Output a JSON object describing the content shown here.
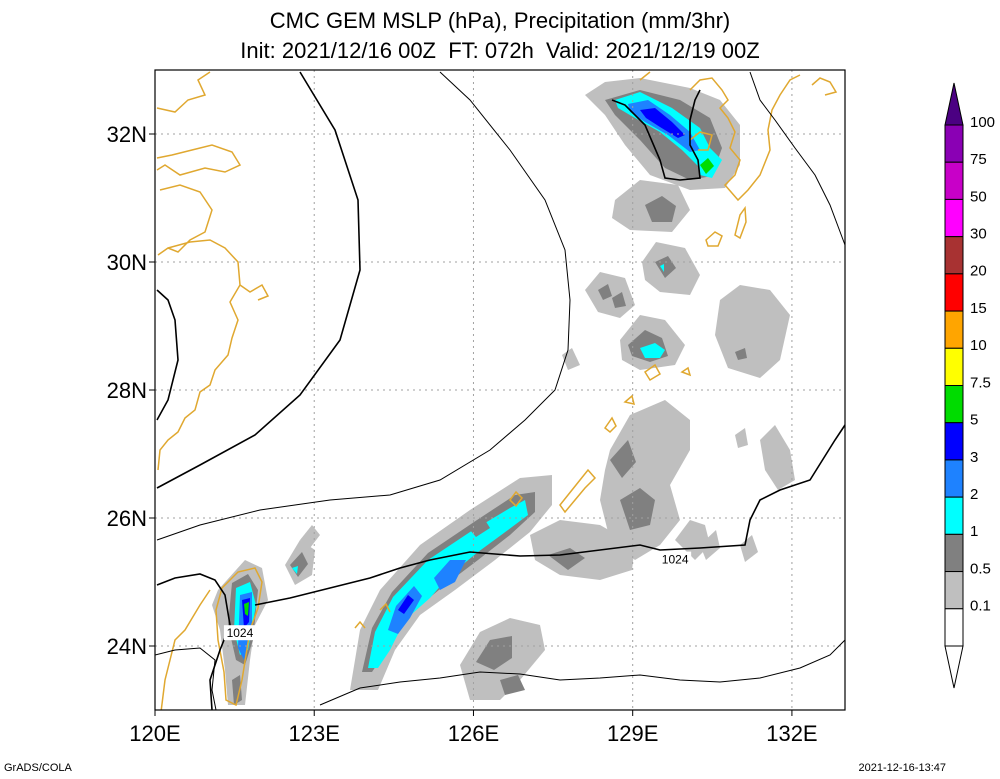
{
  "title": {
    "line1": "CMC GEM MSLP (hPa), Precipitation (mm/3hr)",
    "line2": "Init: 2021/12/16 00Z  FT: 072h  Valid: 2021/12/19 00Z"
  },
  "axes": {
    "lon_min": 120,
    "lon_max": 133,
    "lat_min": 23,
    "lat_max": 33,
    "x_ticks": [
      {
        "value": 120,
        "label": "120E"
      },
      {
        "value": 123,
        "label": "123E"
      },
      {
        "value": 126,
        "label": "126E"
      },
      {
        "value": 129,
        "label": "129E"
      },
      {
        "value": 132,
        "label": "132E"
      }
    ],
    "y_ticks": [
      {
        "value": 24,
        "label": "24N"
      },
      {
        "value": 26,
        "label": "26N"
      },
      {
        "value": 28,
        "label": "28N"
      },
      {
        "value": 30,
        "label": "30N"
      },
      {
        "value": 32,
        "label": "32N"
      }
    ],
    "grid": true,
    "grid_style": "dotted"
  },
  "contour_labels": [
    {
      "text": "1024",
      "lon": 129.8,
      "lat": 25.35
    },
    {
      "text": "1024",
      "lon": 121.6,
      "lat": 24.2
    }
  ],
  "legend": {
    "position": "right",
    "labels": [
      "100",
      "75",
      "50",
      "30",
      "20",
      "15",
      "10",
      "7.5",
      "5",
      "3",
      "2",
      "1",
      "0.5",
      "0.1"
    ],
    "colors": [
      "#8a00b4",
      "#c800c8",
      "#ff00ff",
      "#a83232",
      "#ff0000",
      "#ffa500",
      "#ffff00",
      "#00dc00",
      "#0000ff",
      "#1e82ff",
      "#00ffff",
      "#808080",
      "#bfbfbf",
      "#ffffff"
    ],
    "top_arrow_color": "#4b0082"
  },
  "colors": {
    "coast": "#e0a830",
    "isobar": "#000000",
    "grid": "#a0a0a0"
  },
  "footer": {
    "left": "GrADS/COLA",
    "right": "2021-12-16-13:47"
  }
}
